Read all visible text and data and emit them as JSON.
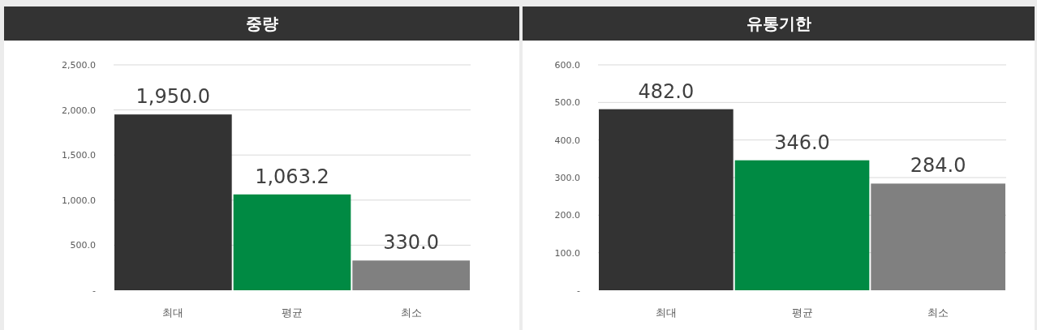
{
  "chart_data": [
    {
      "type": "bar",
      "title": "중량",
      "categories": [
        "최대",
        "평균",
        "최소"
      ],
      "values": [
        1950,
        1063.2,
        330
      ],
      "colors": [
        "#333333",
        "#008a43",
        "#808080"
      ],
      "value_labels": [
        "1,950.0",
        "1,063.2",
        "330.0"
      ],
      "ylim": [
        0,
        2500
      ],
      "yticks": [
        {
          "value": 0,
          "label": "-"
        },
        {
          "value": 500,
          "label": "500.0"
        },
        {
          "value": 1000,
          "label": "1,000.0"
        },
        {
          "value": 1500,
          "label": "1,500.0"
        },
        {
          "value": 2000,
          "label": "2,000.0"
        },
        {
          "value": 2500,
          "label": "2,500.0"
        }
      ],
      "grid": "y"
    },
    {
      "type": "bar",
      "title": "유통기한",
      "categories": [
        "최대",
        "평균",
        "최소"
      ],
      "values": [
        482,
        346,
        284
      ],
      "colors": [
        "#333333",
        "#008a43",
        "#808080"
      ],
      "value_labels": [
        "482.0",
        "346.0",
        "284.0"
      ],
      "ylim": [
        0,
        600
      ],
      "yticks": [
        {
          "value": 0,
          "label": "-"
        },
        {
          "value": 100,
          "label": "100.0"
        },
        {
          "value": 200,
          "label": "200.0"
        },
        {
          "value": 300,
          "label": "300.0"
        },
        {
          "value": 400,
          "label": "400.0"
        },
        {
          "value": 500,
          "label": "500.0"
        },
        {
          "value": 600,
          "label": "600.0"
        }
      ],
      "grid": "y"
    }
  ]
}
